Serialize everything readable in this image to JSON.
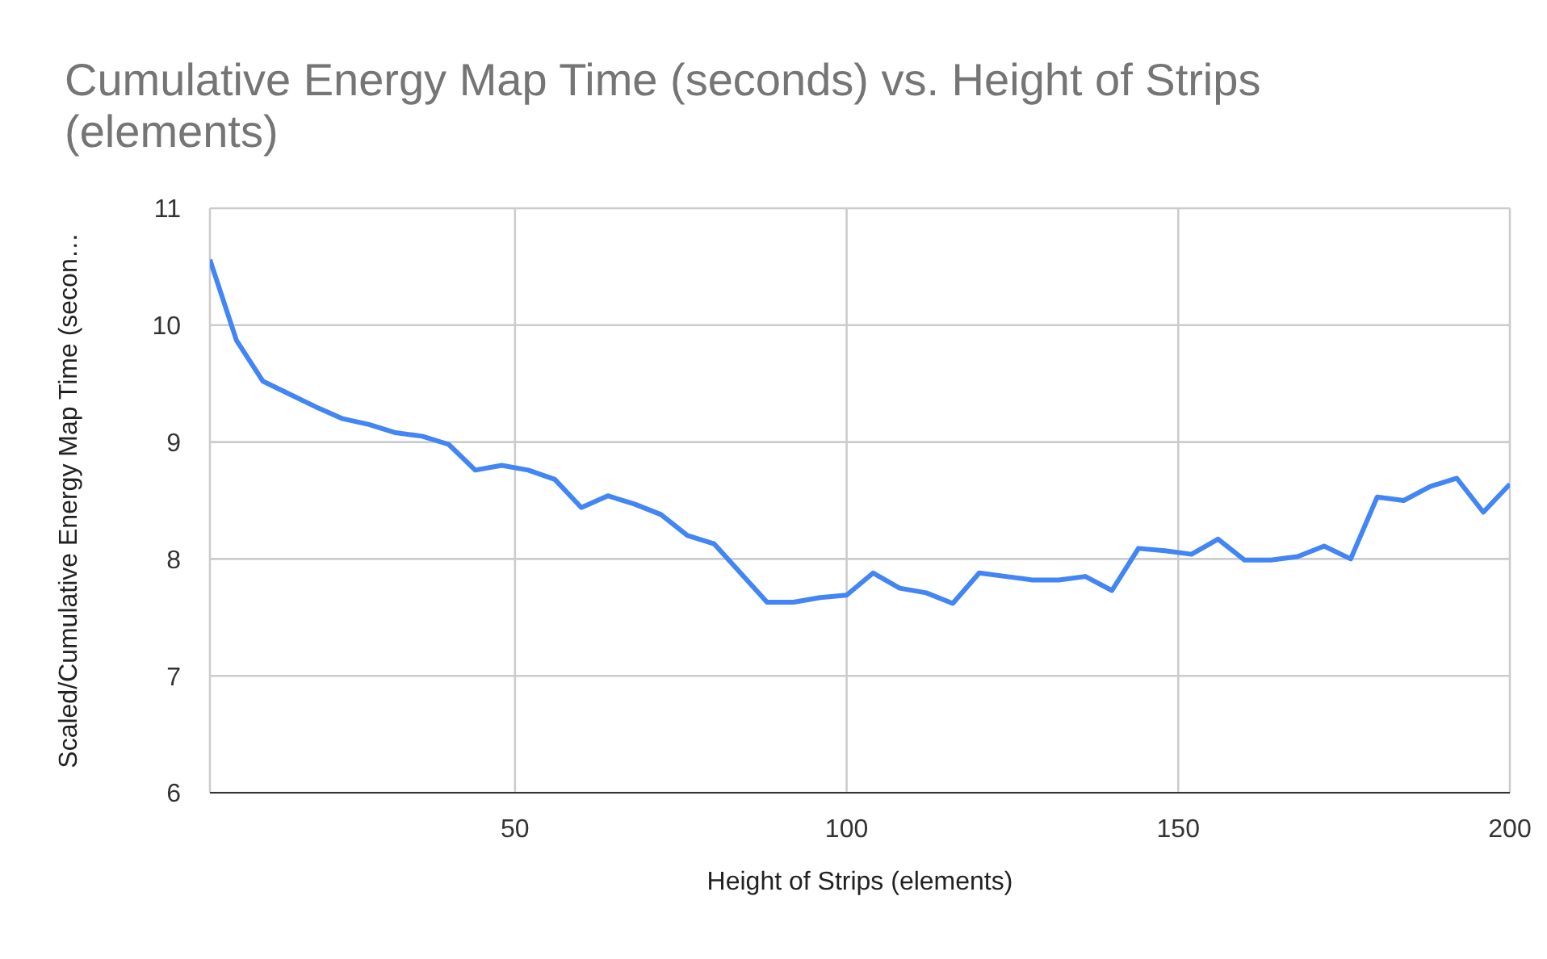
{
  "chart_data": {
    "type": "line",
    "title": "Cumulative Energy Map Time (seconds) vs. Height of Strips (elements)",
    "xlabel": "Height of Strips (elements)",
    "ylabel": "Scaled/Cumulative Energy Map Time (secon…",
    "x": [
      4,
      8,
      12,
      16,
      20,
      24,
      28,
      32,
      36,
      40,
      44,
      48,
      52,
      56,
      60,
      64,
      68,
      72,
      76,
      80,
      84,
      88,
      92,
      96,
      100,
      104,
      108,
      112,
      116,
      120,
      124,
      128,
      132,
      136,
      140,
      144,
      148,
      152,
      156,
      160,
      164,
      168,
      172,
      176,
      180,
      184,
      188,
      192,
      196,
      200
    ],
    "series": [
      {
        "color": "#4285f4",
        "values": [
          10.56,
          9.87,
          9.52,
          9.41,
          9.3,
          9.2,
          9.15,
          9.08,
          9.05,
          8.98,
          8.76,
          8.8,
          8.76,
          8.68,
          8.44,
          8.54,
          8.47,
          8.38,
          8.2,
          8.13,
          7.88,
          7.63,
          7.63,
          7.67,
          7.69,
          7.88,
          7.75,
          7.71,
          7.62,
          7.88,
          7.85,
          7.82,
          7.82,
          7.85,
          7.73,
          8.09,
          8.07,
          8.04,
          8.17,
          7.99,
          7.99,
          8.02,
          8.11,
          8,
          8.53,
          8.5,
          8.62,
          8.69,
          8.4,
          8.64
        ]
      }
    ],
    "xlim": [
      4,
      200
    ],
    "xticks": [
      50,
      100,
      150,
      200
    ],
    "ylim": [
      6,
      11
    ],
    "yticks": [
      6,
      7,
      8,
      9,
      10,
      11
    ],
    "grid": true,
    "legend": false,
    "marker": "none",
    "line_style": "solid"
  }
}
